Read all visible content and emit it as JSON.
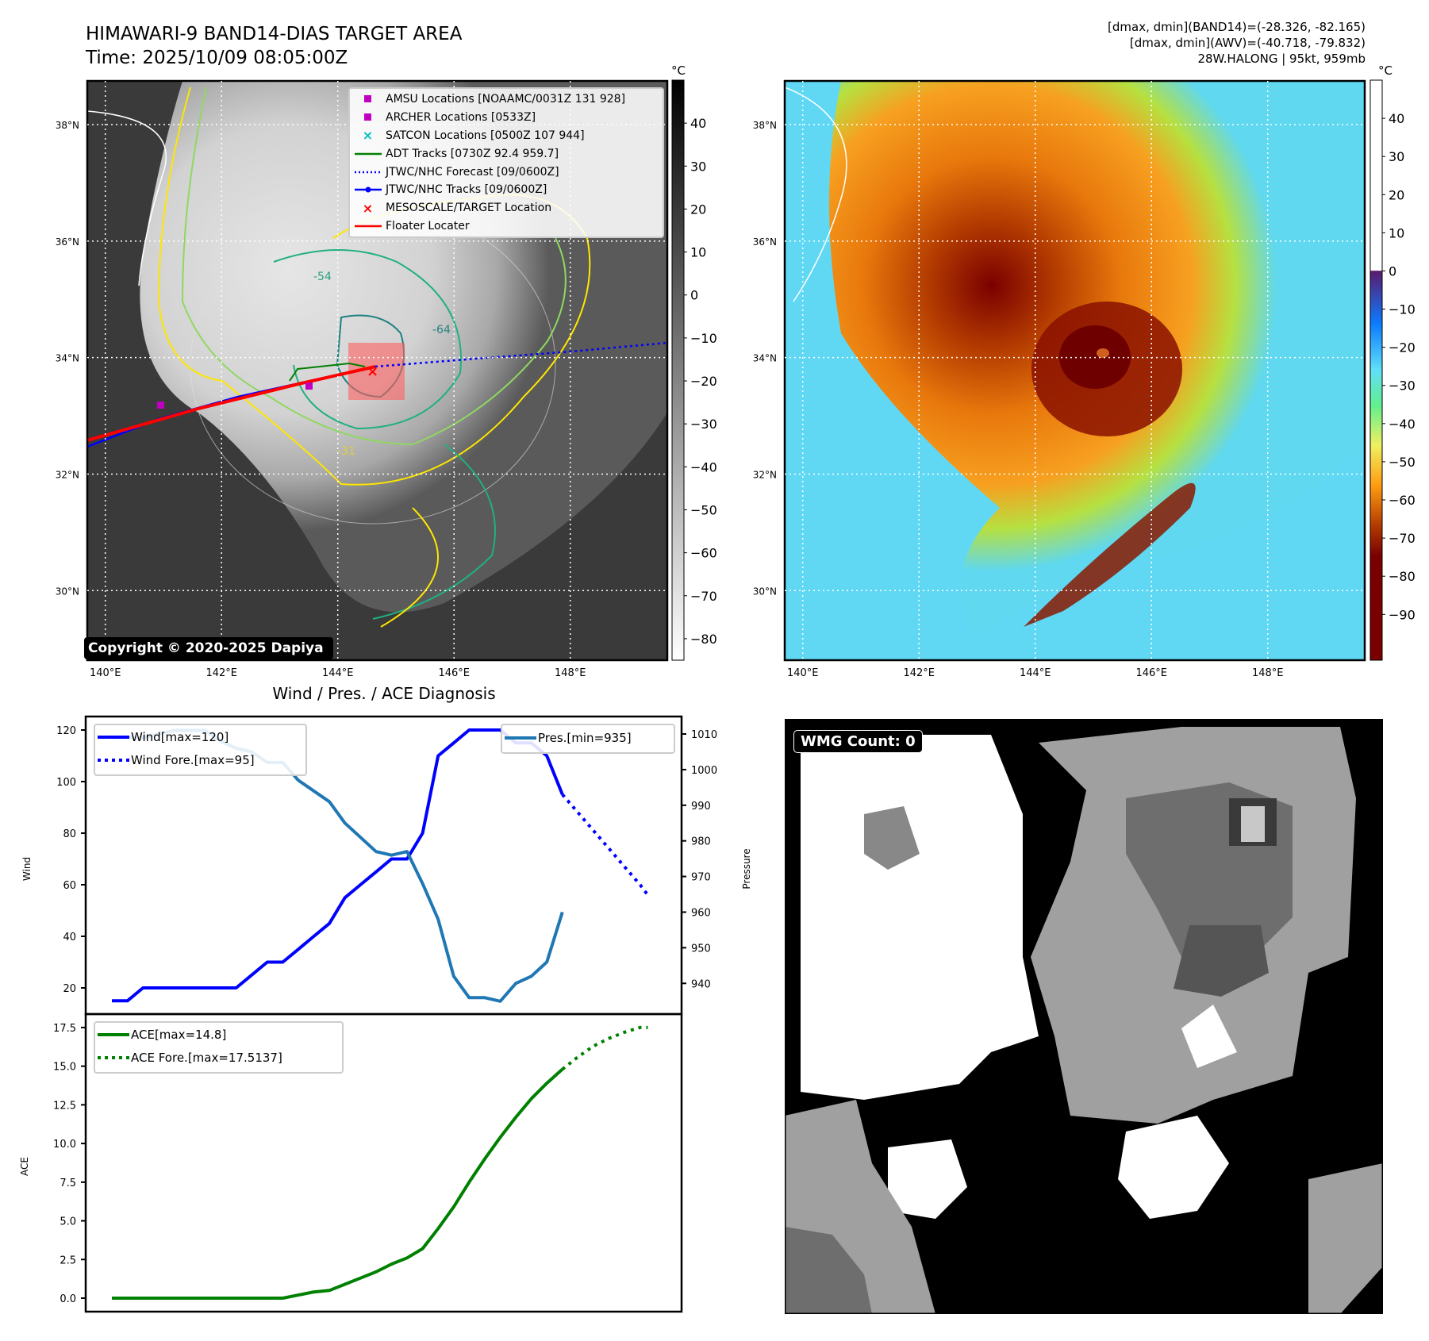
{
  "header": {
    "title_line1": "HIMAWARI-9 BAND14-DIAS TARGET AREA",
    "title_line2": "Time: 2025/10/09 08:05:00Z",
    "stats_line1": "[dmax, dmin](BAND14)=(-28.326, -82.165)",
    "stats_line2": "[dmax, dmin](AWV)=(-40.718, -79.832)",
    "stats_line3": "28W.HALONG | 95kt, 959mb"
  },
  "maps": {
    "lat_labels": [
      "38°N",
      "36°N",
      "34°N",
      "32°N",
      "30°N"
    ],
    "lat_values": [
      38,
      36,
      34,
      32,
      30
    ],
    "lon_labels": [
      "140°E",
      "142°E",
      "144°E",
      "146°E",
      "148°E"
    ],
    "lon_values": [
      140,
      142,
      144,
      146,
      148
    ],
    "copyright": "Copyright © 2020-2025 Dapiya",
    "contour_labels": [
      "-31",
      "-54",
      "-64"
    ],
    "legend": [
      {
        "label": "AMSU Locations [NOAAMC/0031Z 131 928]",
        "symbol": "square",
        "color": "#c000c0"
      },
      {
        "label": "ARCHER Locations [0533Z]",
        "symbol": "square",
        "color": "#c000c0"
      },
      {
        "label": "SATCON Locations [0500Z 107 944]",
        "symbol": "x",
        "color": "#00c0c0"
      },
      {
        "label": "ADT Tracks [0730Z 92.4 959.7]",
        "symbol": "line",
        "color": "#008000"
      },
      {
        "label": "JTWC/NHC Forecast [09/0600Z]",
        "symbol": "dotted",
        "color": "#0000ff"
      },
      {
        "label": "JTWC/NHC Tracks [09/0600Z]",
        "symbol": "line-dot",
        "color": "#0000ff"
      },
      {
        "label": "MESOSCALE/TARGET Location",
        "symbol": "x",
        "color": "#ff0000"
      },
      {
        "label": "Floater Locater",
        "symbol": "line",
        "color": "#ff0000"
      }
    ],
    "colorbar_left": {
      "unit": "°C",
      "ticks": [
        "40",
        "30",
        "20",
        "10",
        "0",
        "−10",
        "−20",
        "−30",
        "−40",
        "−50",
        "−60",
        "−70",
        "−80"
      ],
      "values": [
        40,
        30,
        20,
        10,
        0,
        -10,
        -20,
        -30,
        -40,
        -50,
        -60,
        -70,
        -80
      ],
      "range": [
        -85,
        50
      ]
    },
    "colorbar_right": {
      "unit": "°C",
      "ticks": [
        "40",
        "30",
        "20",
        "10",
        "0",
        "−10",
        "−20",
        "−30",
        "−40",
        "−50",
        "−60",
        "−70",
        "−80",
        "−90"
      ],
      "values": [
        40,
        30,
        20,
        10,
        0,
        -10,
        -20,
        -30,
        -40,
        -50,
        -60,
        -70,
        -80,
        -90
      ],
      "range": [
        -102,
        50
      ]
    }
  },
  "wmg": {
    "label": "WMG Count: 0"
  },
  "chart_data": [
    {
      "type": "line",
      "title": "Wind / Pres. / ACE Diagnosis",
      "ylabel": "Wind",
      "y2label": "Pressure",
      "ylim": [
        11.5,
        126
      ],
      "y2lim": [
        931,
        1015
      ],
      "yticks": [
        20,
        40,
        60,
        80,
        100,
        120
      ],
      "y2ticks": [
        940,
        950,
        960,
        970,
        980,
        990,
        1000,
        1010
      ],
      "series": [
        {
          "name": "Wind[max=120]",
          "style": "solid",
          "color": "#0000ff",
          "x": [
            0,
            1,
            2,
            3,
            4,
            5,
            6,
            7,
            8,
            9,
            10,
            11,
            12,
            13,
            14,
            15,
            16,
            17,
            18,
            19,
            20,
            21,
            22,
            23,
            24,
            25,
            26,
            27,
            28,
            29
          ],
          "values": [
            15,
            15,
            20,
            20,
            20,
            20,
            20,
            20,
            20,
            25,
            30,
            30,
            35,
            40,
            45,
            55,
            60,
            65,
            70,
            70,
            80,
            110,
            115,
            120,
            120,
            120,
            115,
            115,
            110,
            95
          ]
        },
        {
          "name": "Wind Fore.[max=95]",
          "style": "dotted",
          "color": "#0000ff",
          "x": [
            29,
            30,
            31,
            32,
            33,
            34,
            34.5
          ],
          "values": [
            95,
            88,
            81,
            74,
            67,
            60,
            56
          ]
        },
        {
          "name": "Pres.[min=935]",
          "style": "solid",
          "color": "#1f77b4",
          "axis": "right",
          "x": [
            0,
            1,
            2,
            3,
            4,
            5,
            6,
            7,
            8,
            9,
            10,
            11,
            12,
            13,
            14,
            15,
            16,
            17,
            18,
            19,
            20,
            21,
            22,
            23,
            24,
            25,
            26,
            27,
            28,
            29
          ],
          "values": [
            1009,
            1009,
            1009,
            1010,
            1011,
            1011,
            1011,
            1008,
            1006,
            1005,
            1002,
            1002,
            997,
            994,
            991,
            985,
            981,
            977,
            976,
            977,
            968,
            958,
            942,
            936,
            936,
            935,
            940,
            942,
            946,
            960
          ]
        }
      ]
    },
    {
      "type": "line",
      "ylabel": "ACE",
      "ylim": [
        -0.9,
        18.3
      ],
      "yticks": [
        0.0,
        2.5,
        5.0,
        7.5,
        10.0,
        12.5,
        15.0,
        17.5
      ],
      "ytick_labels": [
        "0.0",
        "2.5",
        "5.0",
        "7.5",
        "10.0",
        "12.5",
        "15.0",
        "17.5"
      ],
      "series": [
        {
          "name": "ACE[max=14.8]",
          "style": "solid",
          "color": "#008000",
          "x": [
            0,
            1,
            2,
            3,
            4,
            5,
            6,
            7,
            8,
            9,
            10,
            11,
            12,
            13,
            14,
            15,
            16,
            17,
            18,
            19,
            20,
            21,
            22,
            23,
            24,
            25,
            26,
            27,
            28,
            29
          ],
          "values": [
            0,
            0,
            0,
            0,
            0,
            0,
            0,
            0,
            0,
            0,
            0,
            0,
            0.2,
            0.4,
            0.5,
            0.9,
            1.3,
            1.7,
            2.2,
            2.6,
            3.2,
            4.5,
            5.9,
            7.5,
            9.0,
            10.4,
            11.7,
            12.9,
            13.9,
            14.8
          ]
        },
        {
          "name": "ACE Fore.[max=17.5137]",
          "style": "dotted",
          "color": "#008000",
          "x": [
            29,
            30,
            31,
            32,
            33,
            34,
            34.5
          ],
          "values": [
            14.8,
            15.6,
            16.3,
            16.8,
            17.2,
            17.5,
            17.5
          ]
        }
      ]
    }
  ]
}
